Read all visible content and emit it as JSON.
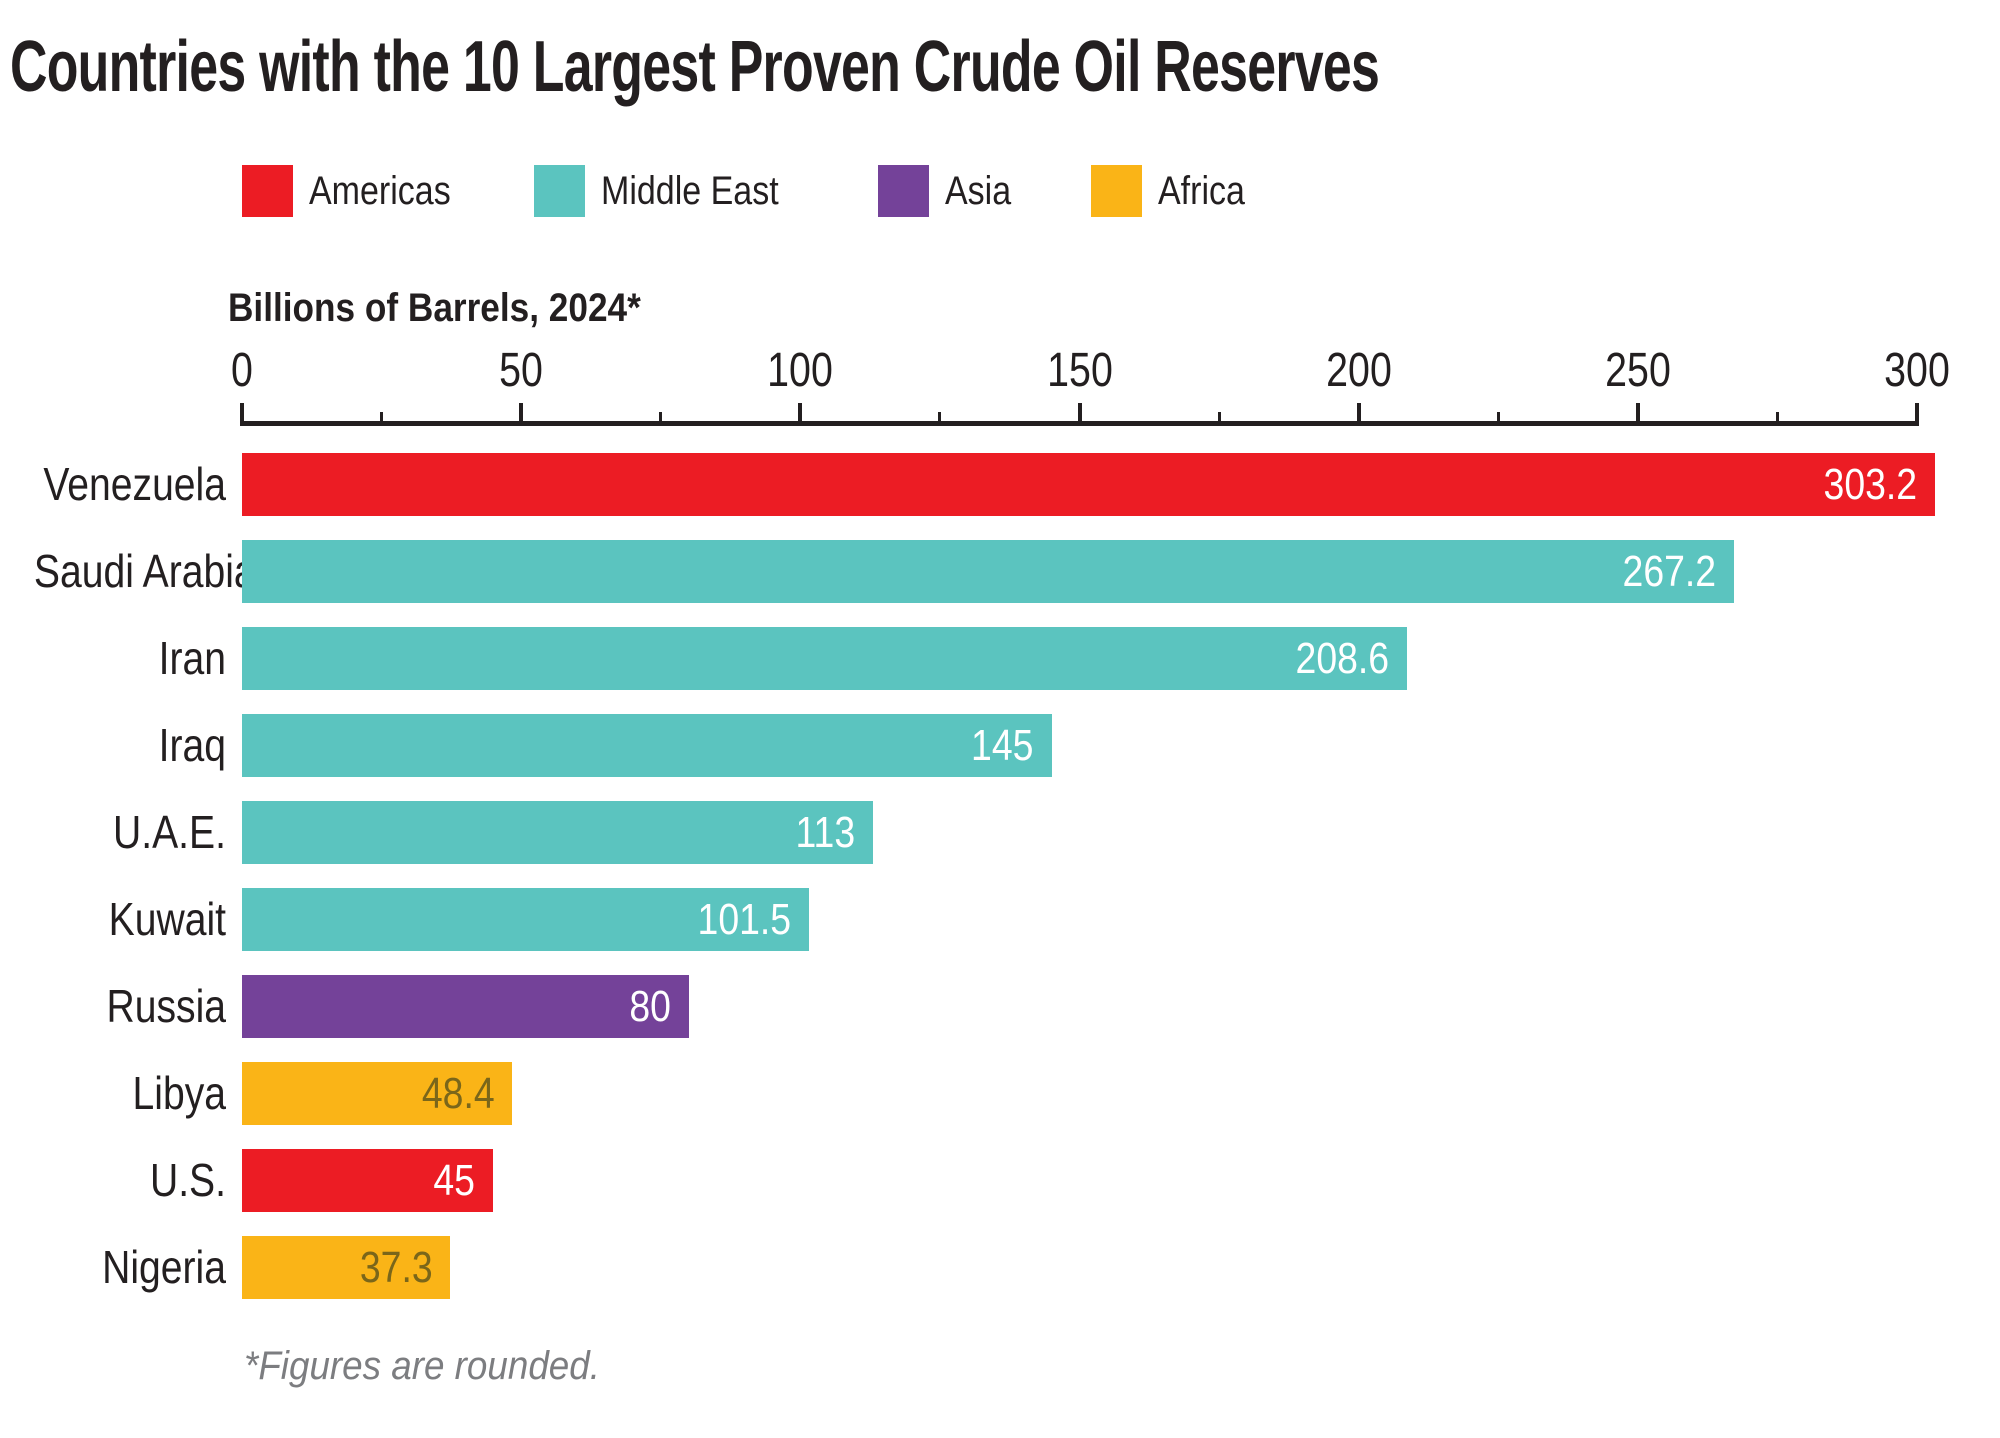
{
  "title": "Countries with the 10 Largest Proven Crude Oil Reserves",
  "axis_label": "Billions of Barrels, 2024*",
  "footnote": "*Figures are rounded.",
  "legend": [
    {
      "label": "Americas",
      "region": "Americas"
    },
    {
      "label": "Middle East",
      "region": "Middle East"
    },
    {
      "label": "Asia",
      "region": "Asia"
    },
    {
      "label": "Africa",
      "region": "Africa"
    }
  ],
  "colors": {
    "Americas": "#EC1C24",
    "Middle East": "#5BC4BF",
    "Asia": "#744299",
    "Africa": "#FAB417",
    "axis": "#231F20",
    "text": "#231F20",
    "footnote": "#7C7D80",
    "value_label_default": "#FFFFFF",
    "value_label_on_africa": "#7A661A"
  },
  "chart_data": {
    "type": "bar",
    "orientation": "horizontal",
    "title": "Countries with the 10 Largest Proven Crude Oil Reserves",
    "xlabel": "Billions of Barrels, 2024*",
    "xlim": [
      0,
      300
    ],
    "xticks": [
      0,
      50,
      100,
      150,
      200,
      250,
      300
    ],
    "minor_tick_interval": 25,
    "grid": false,
    "legend_position": "top",
    "categories": [
      "Venezuela",
      "Saudi Arabia",
      "Iran",
      "Iraq",
      "U.A.E.",
      "Kuwait",
      "Russia",
      "Libya",
      "U.S.",
      "Nigeria"
    ],
    "values": [
      303.2,
      267.2,
      208.6,
      145,
      113,
      101.5,
      80,
      48.4,
      45,
      37.3
    ],
    "bars": [
      {
        "country": "Venezuela",
        "value": 303.2,
        "value_label": "303.2",
        "region": "Americas"
      },
      {
        "country": "Saudi Arabia",
        "value": 267.2,
        "value_label": "267.2",
        "region": "Middle East"
      },
      {
        "country": "Iran",
        "value": 208.6,
        "value_label": "208.6",
        "region": "Middle East"
      },
      {
        "country": "Iraq",
        "value": 145,
        "value_label": "145",
        "region": "Middle East"
      },
      {
        "country": "U.A.E.",
        "value": 113,
        "value_label": "113",
        "region": "Middle East"
      },
      {
        "country": "Kuwait",
        "value": 101.5,
        "value_label": "101.5",
        "region": "Middle East"
      },
      {
        "country": "Russia",
        "value": 80,
        "value_label": "80",
        "region": "Asia"
      },
      {
        "country": "Libya",
        "value": 48.4,
        "value_label": "48.4",
        "region": "Africa"
      },
      {
        "country": "U.S.",
        "value": 45,
        "value_label": "45",
        "region": "Americas"
      },
      {
        "country": "Nigeria",
        "value": 37.3,
        "value_label": "37.3",
        "region": "Africa"
      }
    ]
  }
}
